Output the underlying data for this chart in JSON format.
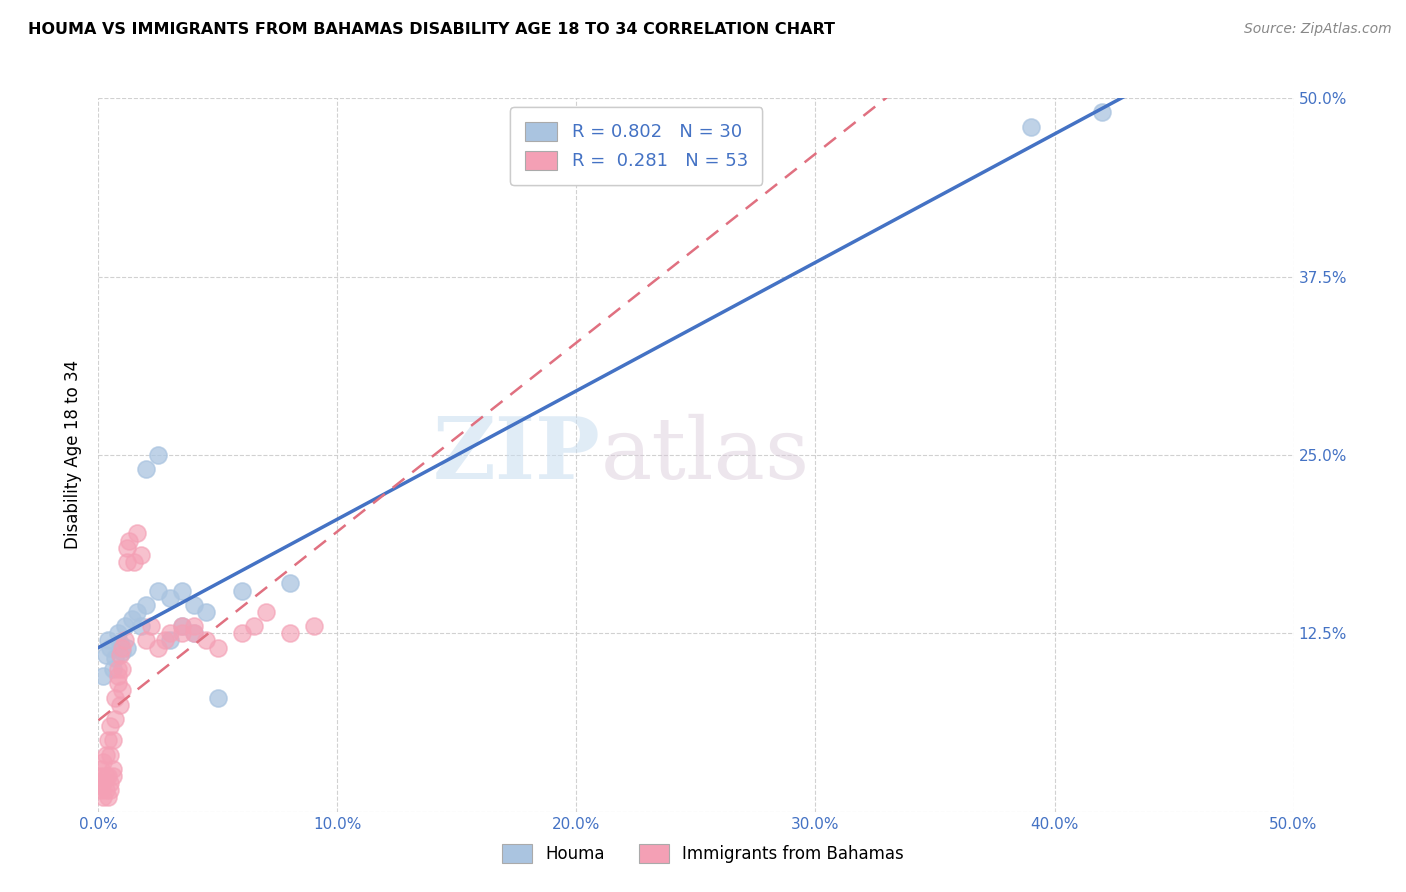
{
  "title": "HOUMA VS IMMIGRANTS FROM BAHAMAS DISABILITY AGE 18 TO 34 CORRELATION CHART",
  "source": "Source: ZipAtlas.com",
  "ylabel": "Disability Age 18 to 34",
  "xlim": [
    0.0,
    0.5
  ],
  "ylim": [
    0.0,
    0.5
  ],
  "xticks": [
    0.0,
    0.1,
    0.2,
    0.3,
    0.4,
    0.5
  ],
  "xticklabels": [
    "0.0%",
    "10.0%",
    "20.0%",
    "30.0%",
    "40.0%",
    "50.0%"
  ],
  "yticks": [
    0.0,
    0.125,
    0.25,
    0.375,
    0.5
  ],
  "right_yticks": [
    0.125,
    0.25,
    0.375,
    0.5
  ],
  "right_yticklabels": [
    "12.5%",
    "25.0%",
    "37.5%",
    "50.0%"
  ],
  "houma_R": 0.802,
  "houma_N": 30,
  "bahamas_R": 0.281,
  "bahamas_N": 53,
  "houma_color": "#aac4e0",
  "bahamas_color": "#f4a0b5",
  "houma_line_color": "#4472c4",
  "bahamas_line_color": "#e07080",
  "watermark_part1": "ZIP",
  "watermark_part2": "atlas",
  "houma_x": [
    0.002,
    0.003,
    0.004,
    0.005,
    0.006,
    0.007,
    0.008,
    0.009,
    0.01,
    0.011,
    0.012,
    0.014,
    0.016,
    0.018,
    0.02,
    0.025,
    0.03,
    0.035,
    0.04,
    0.05,
    0.06,
    0.08,
    0.03,
    0.035,
    0.045,
    0.04,
    0.39,
    0.42,
    0.025,
    0.02
  ],
  "houma_y": [
    0.095,
    0.11,
    0.12,
    0.115,
    0.1,
    0.108,
    0.125,
    0.118,
    0.112,
    0.13,
    0.115,
    0.135,
    0.14,
    0.13,
    0.145,
    0.155,
    0.15,
    0.155,
    0.145,
    0.08,
    0.155,
    0.16,
    0.12,
    0.13,
    0.14,
    0.125,
    0.48,
    0.49,
    0.25,
    0.24
  ],
  "bahamas_x": [
    0.0005,
    0.001,
    0.001,
    0.001,
    0.002,
    0.002,
    0.002,
    0.003,
    0.003,
    0.003,
    0.004,
    0.004,
    0.004,
    0.005,
    0.005,
    0.005,
    0.005,
    0.006,
    0.006,
    0.006,
    0.007,
    0.007,
    0.008,
    0.008,
    0.009,
    0.009,
    0.01,
    0.01,
    0.011,
    0.012,
    0.012,
    0.013,
    0.015,
    0.016,
    0.018,
    0.02,
    0.022,
    0.025,
    0.028,
    0.03,
    0.035,
    0.035,
    0.04,
    0.04,
    0.045,
    0.05,
    0.06,
    0.065,
    0.07,
    0.08,
    0.09,
    0.01,
    0.008
  ],
  "bahamas_y": [
    0.02,
    0.015,
    0.025,
    0.03,
    0.01,
    0.02,
    0.035,
    0.025,
    0.04,
    0.015,
    0.025,
    0.05,
    0.01,
    0.02,
    0.04,
    0.06,
    0.015,
    0.03,
    0.05,
    0.025,
    0.08,
    0.065,
    0.095,
    0.09,
    0.075,
    0.11,
    0.1,
    0.085,
    0.12,
    0.175,
    0.185,
    0.19,
    0.175,
    0.195,
    0.18,
    0.12,
    0.13,
    0.115,
    0.12,
    0.125,
    0.125,
    0.13,
    0.13,
    0.125,
    0.12,
    0.115,
    0.125,
    0.13,
    0.14,
    0.125,
    0.13,
    0.115,
    0.1
  ]
}
